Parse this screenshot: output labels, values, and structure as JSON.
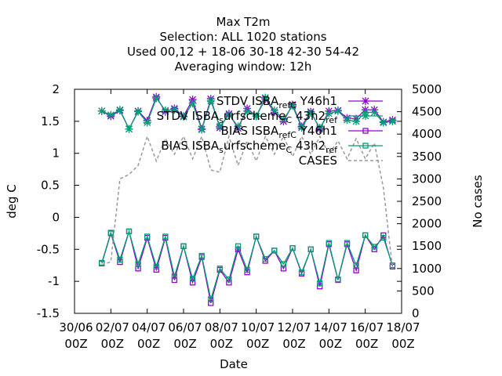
{
  "chart_data": {
    "type": "line",
    "title_lines": [
      "Max T2m",
      "Selection: ALL    1020 stations",
      "Used  00,12  + 18-06 30-18 42-30 54-42",
      "Averaging window: 12h"
    ],
    "xlabel": "Date",
    "ylabel": "deg C",
    "y2label": "No cases",
    "xlim": [
      0,
      18
    ],
    "ylim": [
      -1.5,
      2
    ],
    "y2lim": [
      0,
      5000
    ],
    "x_ticks": [
      {
        "value": 0,
        "line1": "30/06",
        "line2": "00Z"
      },
      {
        "value": 2,
        "line1": "02/07",
        "line2": "00Z"
      },
      {
        "value": 4,
        "line1": "04/07",
        "line2": "00Z"
      },
      {
        "value": 6,
        "line1": "06/07",
        "line2": "00Z"
      },
      {
        "value": 8,
        "line1": "08/07",
        "line2": "00Z"
      },
      {
        "value": 10,
        "line1": "10/07",
        "line2": "00Z"
      },
      {
        "value": 12,
        "line1": "12/07",
        "line2": "00Z"
      },
      {
        "value": 14,
        "line1": "14/07",
        "line2": "00Z"
      },
      {
        "value": 16,
        "line1": "16/07",
        "line2": "00Z"
      },
      {
        "value": 18,
        "line1": "18/07",
        "line2": "00Z"
      }
    ],
    "y_ticks": [
      {
        "value": -1.5,
        "label": "-1.5"
      },
      {
        "value": -1,
        "label": "-1"
      },
      {
        "value": -0.5,
        "label": "-0.5"
      },
      {
        "value": 0,
        "label": "0"
      },
      {
        "value": 0.5,
        "label": "0.5"
      },
      {
        "value": 1,
        "label": "1"
      },
      {
        "value": 1.5,
        "label": "1.5"
      },
      {
        "value": 2,
        "label": "2"
      }
    ],
    "y2_ticks": [
      {
        "value": 0,
        "label": "0"
      },
      {
        "value": 500,
        "label": "500"
      },
      {
        "value": 1000,
        "label": "1000"
      },
      {
        "value": 1500,
        "label": "1500"
      },
      {
        "value": 2000,
        "label": "2000"
      },
      {
        "value": 2500,
        "label": "2500"
      },
      {
        "value": 3000,
        "label": "3000"
      },
      {
        "value": 3500,
        "label": "3500"
      },
      {
        "value": 4000,
        "label": "4000"
      },
      {
        "value": 4500,
        "label": "4500"
      },
      {
        "value": 5000,
        "label": "5000"
      }
    ],
    "x": [
      1.5,
      2,
      2.5,
      3,
      3.5,
      4,
      4.5,
      5,
      5.5,
      6,
      6.5,
      7,
      7.5,
      8,
      8.5,
      9,
      9.5,
      10,
      10.5,
      11,
      11.5,
      12,
      12.5,
      13,
      13.5,
      14,
      14.5,
      15,
      15.5,
      16,
      16.5,
      17,
      17.5
    ],
    "legend_position": "top-right",
    "series": [
      {
        "name": "STDV ISBA_ref_C Y46h1",
        "legend_parts": [
          {
            "t": "STDV ISBA",
            "sub": false
          },
          {
            "t": "ref",
            "sub": true
          },
          {
            "t": "C",
            "sub": true
          },
          {
            "t": " Y46h1",
            "sub": false
          }
        ],
        "axis": "y1",
        "color": "#9400d3",
        "marker": "x-star",
        "dash": false,
        "values": [
          1.66,
          1.58,
          1.67,
          1.38,
          1.66,
          1.51,
          1.88,
          1.65,
          1.7,
          1.58,
          1.84,
          1.38,
          1.85,
          1.4,
          1.62,
          1.39,
          1.7,
          1.58,
          1.85,
          1.64,
          1.5,
          1.76,
          1.42,
          1.65,
          1.38,
          1.66,
          1.67,
          1.55,
          1.54,
          1.68,
          1.68,
          1.49,
          1.52
        ]
      },
      {
        "name": "STDV ISBA_surfscheme_C 43h2_ref",
        "legend_parts": [
          {
            "t": "STDV ISBA",
            "sub": false
          },
          {
            "t": "s",
            "sub": true
          },
          {
            "t": "urfscheme",
            "sub": false
          },
          {
            "t": "C",
            "sub": true
          },
          {
            "t": " 43h2",
            "sub": false
          },
          {
            "t": "ref",
            "sub": true
          }
        ],
        "axis": "y1",
        "color": "#009e73",
        "marker": "x-star",
        "dash": false,
        "values": [
          1.66,
          1.6,
          1.68,
          1.38,
          1.65,
          1.48,
          1.86,
          1.67,
          1.68,
          1.57,
          1.78,
          1.37,
          1.82,
          1.42,
          1.6,
          1.42,
          1.66,
          1.58,
          1.87,
          1.67,
          1.53,
          1.74,
          1.4,
          1.63,
          1.4,
          1.62,
          1.66,
          1.52,
          1.5,
          1.64,
          1.64,
          1.48,
          1.5
        ]
      },
      {
        "name": "BIAS ISBA_ref_C Y46h1",
        "legend_parts": [
          {
            "t": "BIAS ISBA",
            "sub": false
          },
          {
            "t": "ref",
            "sub": true
          },
          {
            "t": "C",
            "sub": true
          },
          {
            "t": " Y46h1",
            "sub": false
          }
        ],
        "axis": "y1",
        "color": "#9400d3",
        "marker": "square",
        "dash": false,
        "values": [
          -0.72,
          -0.25,
          -0.7,
          -0.22,
          -0.8,
          -0.32,
          -0.82,
          -0.32,
          -0.98,
          -0.45,
          -1.02,
          -0.62,
          -1.34,
          -0.82,
          -1.02,
          -0.5,
          -0.86,
          -0.3,
          -0.68,
          -0.52,
          -0.8,
          -0.48,
          -0.88,
          -0.5,
          -1.08,
          -0.42,
          -0.98,
          -0.42,
          -0.83,
          -0.28,
          -0.5,
          -0.28,
          -0.77
        ]
      },
      {
        "name": "BIAS ISBA_surfscheme_C 43h2_ref",
        "legend_parts": [
          {
            "t": "BIAS ISBA",
            "sub": false
          },
          {
            "t": "s",
            "sub": true
          },
          {
            "t": "urfscheme",
            "sub": false
          },
          {
            "t": "C",
            "sub": true
          },
          {
            "t": " 43h2",
            "sub": false
          },
          {
            "t": "ref",
            "sub": true
          }
        ],
        "axis": "y1",
        "color": "#009e73",
        "marker": "square",
        "dash": false,
        "values": [
          -0.71,
          -0.24,
          -0.66,
          -0.22,
          -0.73,
          -0.3,
          -0.77,
          -0.3,
          -0.92,
          -0.45,
          -0.96,
          -0.6,
          -1.28,
          -0.8,
          -0.97,
          -0.45,
          -0.82,
          -0.3,
          -0.65,
          -0.52,
          -0.73,
          -0.48,
          -0.86,
          -0.5,
          -1.03,
          -0.4,
          -0.97,
          -0.4,
          -0.75,
          -0.28,
          -0.46,
          -0.32,
          -0.75
        ]
      },
      {
        "name": "CASES",
        "legend_parts": [
          {
            "t": "CASES",
            "sub": false
          }
        ],
        "axis": "y2",
        "color": "#999999",
        "marker": "none",
        "dash": true,
        "values": [
          1080,
          1150,
          3000,
          3100,
          3300,
          3950,
          3400,
          3900,
          3550,
          3950,
          3450,
          3950,
          3200,
          3150,
          3950,
          3300,
          3850,
          3400,
          3950,
          3550,
          3950,
          3500,
          3950,
          3550,
          3950,
          3550,
          3850,
          3450,
          3900,
          3450,
          3800,
          2800,
          1000
        ]
      }
    ]
  }
}
